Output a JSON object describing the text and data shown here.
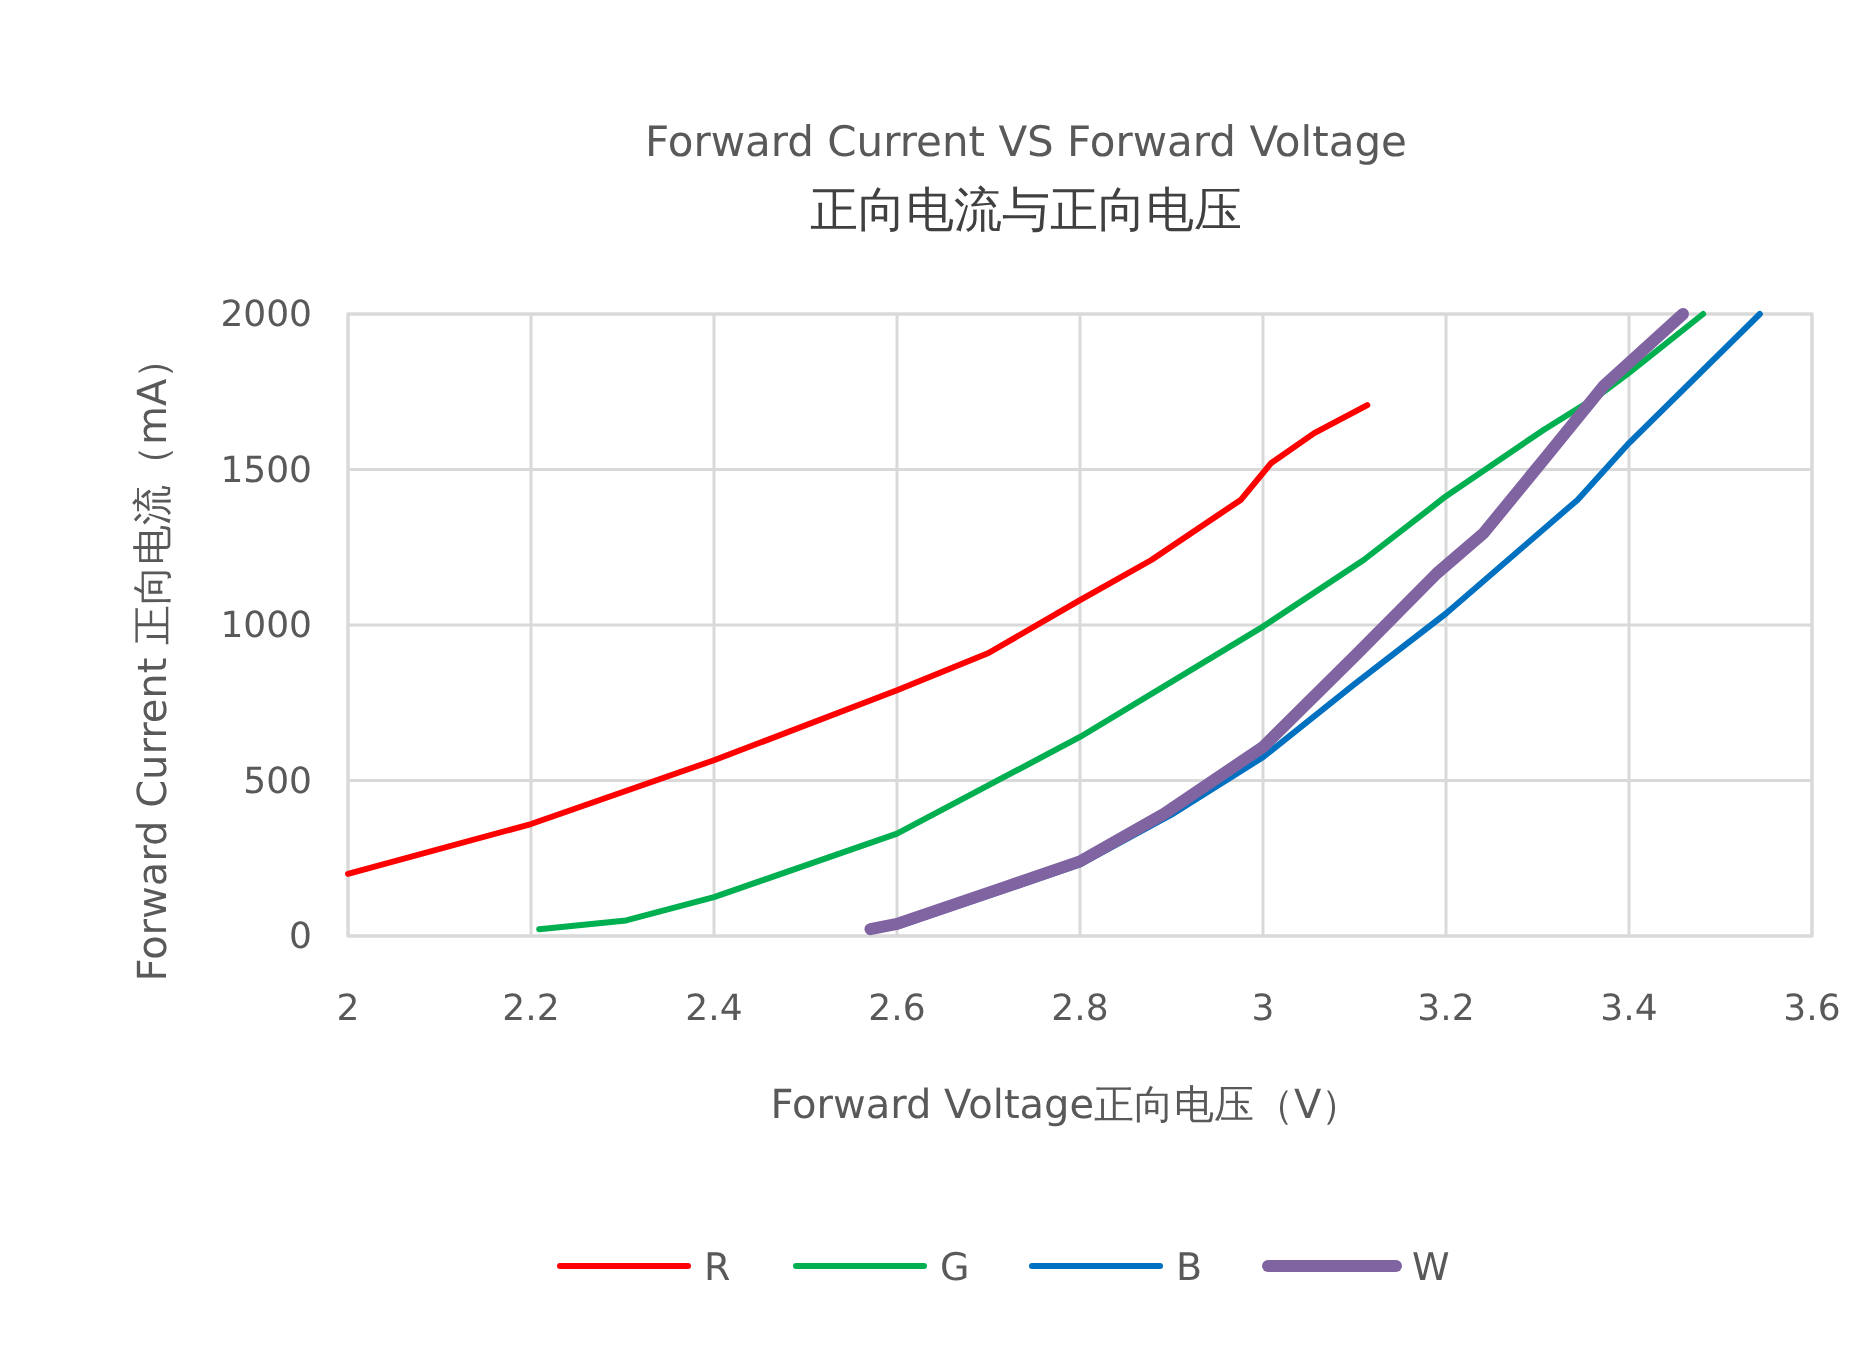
{
  "chart_data": {
    "type": "line",
    "title": "Forward Current VS Forward Voltage",
    "subtitle": "正向电流与正向电压",
    "xlabel": "Forward Voltage正向电压（V）",
    "ylabel": "Forward Current 正向电流（mA）",
    "xlim": [
      2,
      3.6
    ],
    "xticks": [
      {
        "value": 2,
        "label": "2"
      },
      {
        "value": 2.2,
        "label": "2.2"
      },
      {
        "value": 2.4,
        "label": "2.4"
      },
      {
        "value": 2.6,
        "label": "2.6"
      },
      {
        "value": 2.8,
        "label": "2.8"
      },
      {
        "value": 3,
        "label": "3"
      },
      {
        "value": 3.2,
        "label": "3.2"
      },
      {
        "value": 3.4,
        "label": "3.4"
      },
      {
        "value": 3.6,
        "label": "3.6"
      }
    ],
    "ylim": [
      0,
      2000
    ],
    "yticks": [
      0,
      500,
      1000,
      1500,
      2000
    ],
    "grid": true,
    "legend": "bottom",
    "line_style": "solid",
    "marker": "none",
    "series": [
      {
        "name": "R",
        "color": "#ff0000",
        "x": [
          2,
          2.2,
          2.4,
          2.6,
          2.7,
          2.8,
          2.878,
          2.976,
          3.009,
          3.056,
          3.114
        ],
        "values": [
          200,
          360,
          565,
          790,
          910,
          1080,
          1209,
          1403,
          1521,
          1617,
          1707
        ]
      },
      {
        "name": "G",
        "color": "#00b050",
        "x": [
          2.209,
          2.304,
          2.4,
          2.6,
          2.8,
          3.0,
          3.11,
          3.2,
          3.307,
          3.366,
          3.4,
          3.481
        ],
        "values": [
          22,
          50,
          125,
          329,
          640,
          995,
          1209,
          1414,
          1628,
          1736,
          1811,
          2000
        ]
      },
      {
        "name": "B",
        "color": "#0070c0",
        "x": [
          2.6,
          2.8,
          2.9,
          3.0,
          3.1,
          3.2,
          3.344,
          3.4,
          3.543
        ],
        "values": [
          30,
          230,
          390,
          575,
          810,
          1037,
          1403,
          1585,
          2000
        ]
      },
      {
        "name": "W",
        "color": "#8064a2",
        "x": [
          2.571,
          2.6,
          2.718,
          2.8,
          2.892,
          3.0,
          3.103,
          3.19,
          3.241,
          3.307,
          3.372,
          3.459
        ],
        "values": [
          22,
          39,
          157,
          240,
          393,
          608,
          908,
          1166,
          1295,
          1532,
          1768,
          2000
        ]
      }
    ]
  }
}
